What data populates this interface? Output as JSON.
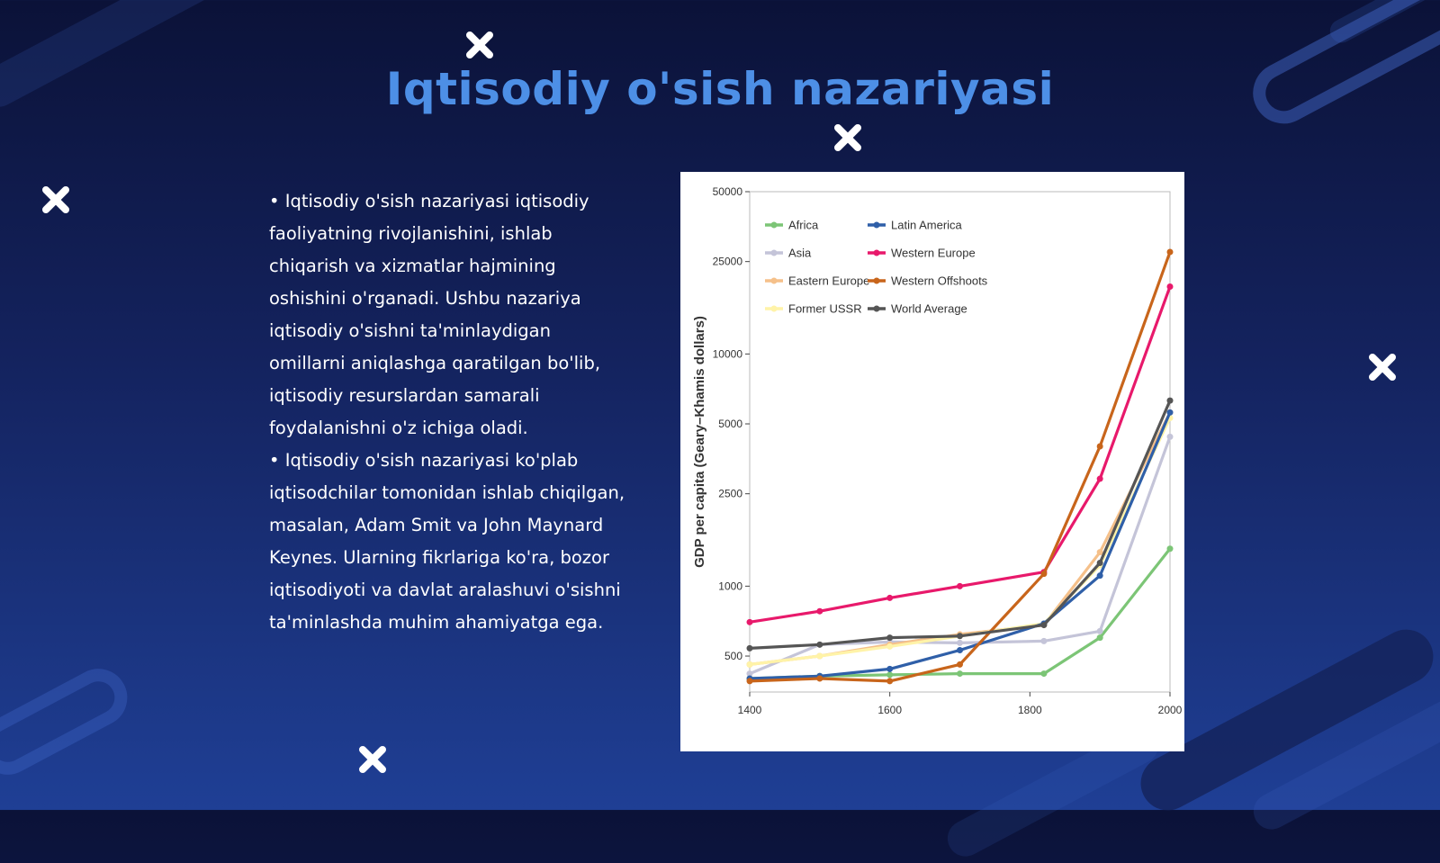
{
  "slide": {
    "title": "Iqtisodiy o'sish nazariyasi",
    "paragraphs": [
      "• Iqtisodiy o'sish nazariyasi iqtisodiy faoliyatning rivojlanishini, ishlab chiqarish va xizmatlar hajmining oshishini o'rganadi. Ushbu nazariya iqtisodiy o'sishni ta'minlaydigan omillarni aniqlashga qaratilgan bo'lib, iqtisodiy resurslardan samarali foydalanishni o'z ichiga oladi.",
      "• Iqtisodiy o'sish nazariyasi ko'plab iqtisodchilar tomonidan ishlab chiqilgan, masalan, Adam Smit va John Maynard Keynes. Ularning fikrlariga ko'ra, bozor iqtisodiyoti va davlat aralashuvi o'sishni ta'minlashda muhim ahamiyatga ega."
    ],
    "decoration_icon": "close-x-icon",
    "colors": {
      "title": "#4d8fe6",
      "text": "#ffffff",
      "background_top": "#0b1238",
      "background_bottom": "#1f3f95"
    }
  },
  "chart_data": {
    "type": "line",
    "ylabel": "GDP per capita (Geary–Khamis dollars)",
    "xlabel": "",
    "y_scale": "log",
    "ylim": [
      350,
      50000
    ],
    "xlim": [
      1400,
      2000
    ],
    "y_ticks": [
      500,
      1000,
      2500,
      5000,
      10000,
      25000,
      50000
    ],
    "x_ticks": [
      1400,
      1600,
      1800,
      2000
    ],
    "grid": false,
    "legend_position": "top-left",
    "x": [
      1400,
      1500,
      1600,
      1700,
      1820,
      1900,
      2000
    ],
    "series": [
      {
        "name": "Africa",
        "color": "#7cc576",
        "values": [
          400,
          410,
          415,
          420,
          420,
          600,
          1450
        ]
      },
      {
        "name": "Asia",
        "color": "#c4c4d8",
        "values": [
          420,
          560,
          575,
          570,
          580,
          640,
          4400
        ]
      },
      {
        "name": "Eastern Europe",
        "color": "#f5c08a",
        "values": [
          460,
          500,
          560,
          620,
          680,
          1400,
          5600
        ]
      },
      {
        "name": "Former USSR",
        "color": "#fff3a8",
        "values": [
          460,
          500,
          550,
          610,
          690,
          1230,
          5300
        ]
      },
      {
        "name": "Latin America",
        "color": "#2f5fa8",
        "values": [
          400,
          410,
          440,
          530,
          690,
          1110,
          5600
        ]
      },
      {
        "name": "Western Europe",
        "color": "#e8196b",
        "values": [
          700,
          780,
          890,
          1000,
          1150,
          2900,
          19500
        ]
      },
      {
        "name": "Western Offshoots",
        "color": "#c8651b",
        "values": [
          390,
          400,
          390,
          460,
          1130,
          4000,
          27500
        ]
      },
      {
        "name": "World Average",
        "color": "#555555",
        "values": [
          540,
          560,
          600,
          610,
          680,
          1260,
          6300
        ]
      }
    ]
  }
}
